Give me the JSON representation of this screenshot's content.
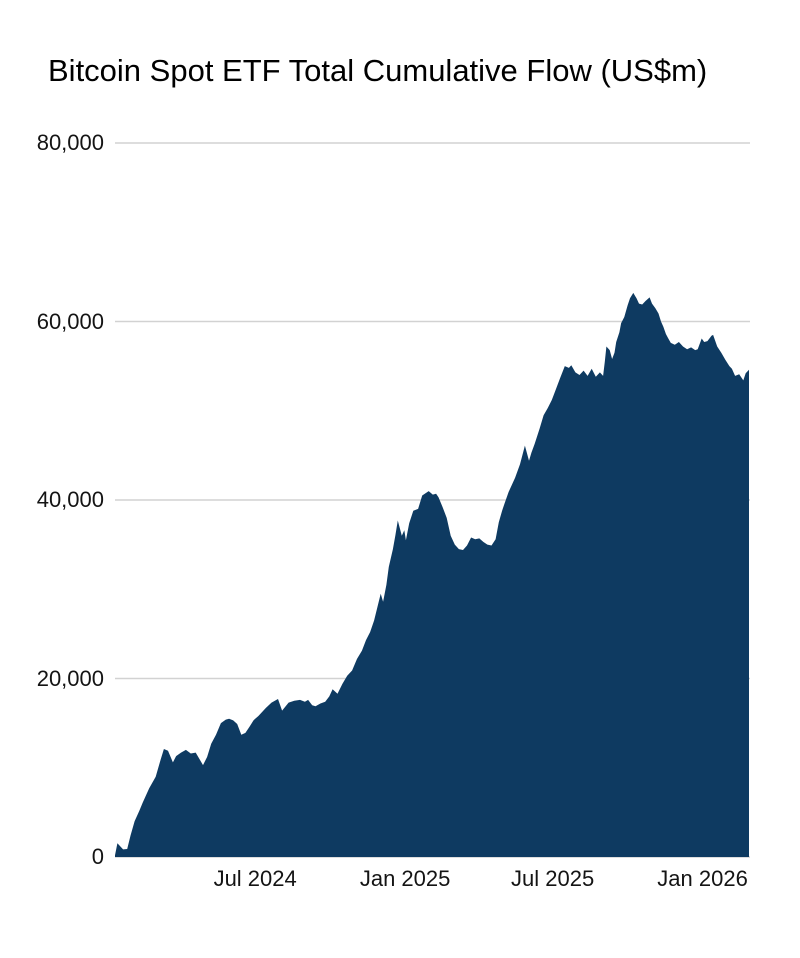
{
  "page": {
    "background": "#ffffff"
  },
  "chart_data": {
    "type": "area",
    "title": "Bitcoin Spot ETF Total Cumulative Flow (US$m)",
    "xlabel": "",
    "ylabel": "",
    "ylim": [
      0,
      80000
    ],
    "x_domain": [
      "2024-01-11",
      "2026-02-27"
    ],
    "grid": {
      "show": true,
      "color": "#d2d2d2"
    },
    "legend": "none",
    "axis_label_color": "#141414",
    "title_color": "#000000",
    "background": "#ffffff",
    "y_ticks": [
      {
        "value": 0,
        "label": "0"
      },
      {
        "value": 20000,
        "label": "20,000"
      },
      {
        "value": 40000,
        "label": "40,000"
      },
      {
        "value": 60000,
        "label": "60,000"
      },
      {
        "value": 80000,
        "label": "80,000"
      }
    ],
    "x_ticks": [
      {
        "date": "2024-07-01",
        "label": "Jul 2024"
      },
      {
        "date": "2025-01-01",
        "label": "Jan 2025"
      },
      {
        "date": "2025-07-01",
        "label": "Jul 2025"
      },
      {
        "date": "2026-01-01",
        "label": "Jan 2026"
      }
    ],
    "series": [
      {
        "name": "Total Cumulative Flow (US$m)",
        "color": "#0e3a61",
        "points": [
          [
            "2024-01-11",
            200
          ],
          [
            "2024-01-14",
            1550
          ],
          [
            "2024-01-21",
            850
          ],
          [
            "2024-01-26",
            900
          ],
          [
            "2024-01-30",
            2400
          ],
          [
            "2024-02-04",
            4000
          ],
          [
            "2024-02-10",
            5200
          ],
          [
            "2024-02-14",
            6100
          ],
          [
            "2024-02-22",
            7700
          ],
          [
            "2024-03-01",
            9000
          ],
          [
            "2024-03-07",
            10900
          ],
          [
            "2024-03-11",
            12100
          ],
          [
            "2024-03-16",
            11900
          ],
          [
            "2024-03-22",
            10600
          ],
          [
            "2024-03-26",
            11300
          ],
          [
            "2024-04-01",
            11700
          ],
          [
            "2024-04-07",
            12000
          ],
          [
            "2024-04-13",
            11600
          ],
          [
            "2024-04-19",
            11700
          ],
          [
            "2024-04-28",
            10300
          ],
          [
            "2024-05-03",
            11200
          ],
          [
            "2024-05-08",
            12700
          ],
          [
            "2024-05-14",
            13700
          ],
          [
            "2024-05-20",
            15000
          ],
          [
            "2024-05-26",
            15400
          ],
          [
            "2024-05-30",
            15500
          ],
          [
            "2024-06-04",
            15300
          ],
          [
            "2024-06-09",
            14900
          ],
          [
            "2024-06-14",
            13700
          ],
          [
            "2024-06-19",
            13900
          ],
          [
            "2024-06-24",
            14600
          ],
          [
            "2024-06-29",
            15300
          ],
          [
            "2024-07-01",
            15500
          ],
          [
            "2024-07-05",
            15800
          ],
          [
            "2024-07-14",
            16700
          ],
          [
            "2024-07-21",
            17300
          ],
          [
            "2024-07-29",
            17700
          ],
          [
            "2024-08-03",
            16400
          ],
          [
            "2024-08-11",
            17300
          ],
          [
            "2024-08-18",
            17500
          ],
          [
            "2024-08-25",
            17600
          ],
          [
            "2024-08-31",
            17400
          ],
          [
            "2024-09-04",
            17600
          ],
          [
            "2024-09-09",
            17000
          ],
          [
            "2024-09-13",
            16900
          ],
          [
            "2024-09-19",
            17200
          ],
          [
            "2024-09-25",
            17400
          ],
          [
            "2024-09-30",
            18000
          ],
          [
            "2024-10-04",
            18800
          ],
          [
            "2024-10-10",
            18300
          ],
          [
            "2024-10-16",
            19400
          ],
          [
            "2024-10-22",
            20300
          ],
          [
            "2024-10-28",
            20900
          ],
          [
            "2024-11-03",
            22200
          ],
          [
            "2024-11-09",
            23100
          ],
          [
            "2024-11-14",
            24300
          ],
          [
            "2024-11-19",
            25200
          ],
          [
            "2024-11-24",
            26500
          ],
          [
            "2024-11-28",
            28000
          ],
          [
            "2024-12-02",
            29500
          ],
          [
            "2024-12-05",
            28600
          ],
          [
            "2024-12-09",
            30500
          ],
          [
            "2024-12-12",
            32500
          ],
          [
            "2024-12-17",
            34500
          ],
          [
            "2024-12-20",
            36000
          ],
          [
            "2024-12-23",
            37700
          ],
          [
            "2024-12-28",
            36000
          ],
          [
            "2024-12-31",
            36600
          ],
          [
            "2025-01-02",
            35500
          ],
          [
            "2025-01-06",
            37400
          ],
          [
            "2025-01-11",
            38800
          ],
          [
            "2025-01-17",
            39000
          ],
          [
            "2025-01-22",
            40500
          ],
          [
            "2025-01-30",
            41000
          ],
          [
            "2025-02-04",
            40600
          ],
          [
            "2025-02-08",
            40700
          ],
          [
            "2025-02-11",
            40300
          ],
          [
            "2025-02-16",
            39200
          ],
          [
            "2025-02-21",
            38000
          ],
          [
            "2025-02-26",
            36000
          ],
          [
            "2025-03-03",
            35000
          ],
          [
            "2025-03-08",
            34500
          ],
          [
            "2025-03-13",
            34400
          ],
          [
            "2025-03-18",
            34900
          ],
          [
            "2025-03-23",
            35800
          ],
          [
            "2025-03-28",
            35600
          ],
          [
            "2025-04-02",
            35700
          ],
          [
            "2025-04-07",
            35300
          ],
          [
            "2025-04-12",
            35000
          ],
          [
            "2025-04-17",
            34900
          ],
          [
            "2025-04-22",
            35600
          ],
          [
            "2025-04-26",
            37500
          ],
          [
            "2025-04-30",
            38800
          ],
          [
            "2025-05-03",
            39600
          ],
          [
            "2025-05-08",
            40900
          ],
          [
            "2025-05-16",
            42500
          ],
          [
            "2025-05-22",
            44000
          ],
          [
            "2025-05-28",
            46100
          ],
          [
            "2025-06-02",
            44400
          ],
          [
            "2025-06-05",
            45300
          ],
          [
            "2025-06-09",
            46300
          ],
          [
            "2025-06-15",
            48000
          ],
          [
            "2025-06-20",
            49500
          ],
          [
            "2025-06-25",
            50300
          ],
          [
            "2025-06-30",
            51200
          ],
          [
            "2025-07-05",
            52400
          ],
          [
            "2025-07-10",
            53600
          ],
          [
            "2025-07-16",
            55000
          ],
          [
            "2025-07-21",
            54800
          ],
          [
            "2025-07-24",
            55100
          ],
          [
            "2025-07-29",
            54300
          ],
          [
            "2025-08-03",
            54000
          ],
          [
            "2025-08-08",
            54500
          ],
          [
            "2025-08-13",
            53900
          ],
          [
            "2025-08-18",
            54700
          ],
          [
            "2025-08-23",
            53800
          ],
          [
            "2025-08-28",
            54300
          ],
          [
            "2025-09-01",
            53900
          ],
          [
            "2025-09-03",
            55500
          ],
          [
            "2025-09-05",
            57200
          ],
          [
            "2025-09-09",
            56800
          ],
          [
            "2025-09-12",
            55800
          ],
          [
            "2025-09-15",
            56500
          ],
          [
            "2025-09-17",
            57700
          ],
          [
            "2025-09-21",
            58800
          ],
          [
            "2025-09-23",
            59800
          ],
          [
            "2025-09-27",
            60500
          ],
          [
            "2025-10-01",
            61800
          ],
          [
            "2025-10-04",
            62600
          ],
          [
            "2025-10-08",
            63200
          ],
          [
            "2025-10-12",
            62600
          ],
          [
            "2025-10-15",
            62000
          ],
          [
            "2025-10-19",
            61900
          ],
          [
            "2025-10-23",
            62300
          ],
          [
            "2025-10-28",
            62700
          ],
          [
            "2025-10-31",
            62000
          ],
          [
            "2025-11-04",
            61500
          ],
          [
            "2025-11-08",
            60900
          ],
          [
            "2025-11-11",
            60000
          ],
          [
            "2025-11-14",
            59400
          ],
          [
            "2025-11-17",
            58600
          ],
          [
            "2025-11-20",
            58100
          ],
          [
            "2025-11-23",
            57600
          ],
          [
            "2025-11-28",
            57400
          ],
          [
            "2025-12-03",
            57700
          ],
          [
            "2025-12-08",
            57200
          ],
          [
            "2025-12-13",
            56900
          ],
          [
            "2025-12-18",
            57100
          ],
          [
            "2025-12-23",
            56800
          ],
          [
            "2025-12-26",
            56900
          ],
          [
            "2025-12-31",
            58100
          ],
          [
            "2026-01-03",
            57700
          ],
          [
            "2026-01-07",
            57800
          ],
          [
            "2026-01-12",
            58400
          ],
          [
            "2026-01-14",
            58500
          ],
          [
            "2026-01-19",
            57200
          ],
          [
            "2026-01-24",
            56500
          ],
          [
            "2026-01-29",
            55700
          ],
          [
            "2026-02-03",
            55000
          ],
          [
            "2026-02-06",
            54700
          ],
          [
            "2026-02-10",
            53900
          ],
          [
            "2026-02-15",
            54100
          ],
          [
            "2026-02-20",
            53400
          ],
          [
            "2026-02-23",
            54200
          ],
          [
            "2026-02-27",
            54600
          ]
        ]
      }
    ]
  }
}
